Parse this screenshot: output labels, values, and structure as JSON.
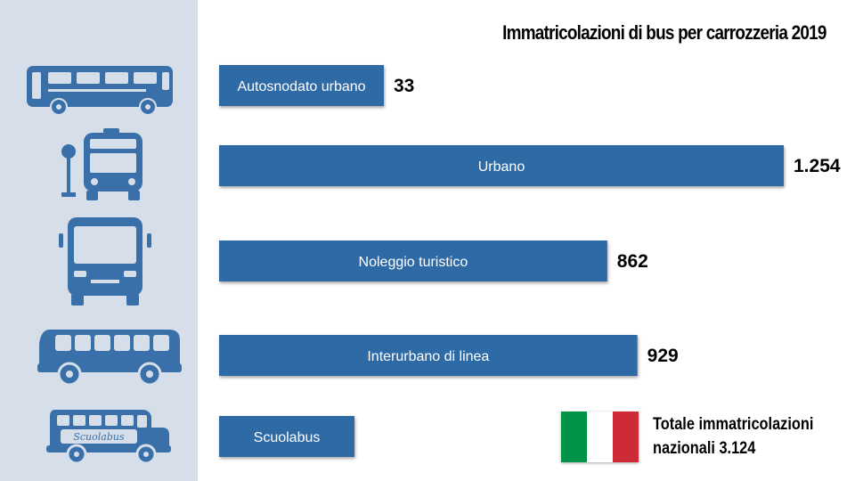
{
  "chart_data": {
    "type": "bar",
    "orientation": "horizontal",
    "title": "Immatricolazioni di bus per carrozzeria 2019",
    "categories": [
      "Autosnodato urbano",
      "Urbano",
      "Noleggio turistico",
      "Interurbano di linea",
      "Scuolabus"
    ],
    "values": [
      33,
      1254,
      862,
      929,
      null
    ],
    "value_labels": [
      "33",
      "1.254",
      "862",
      "929",
      ""
    ],
    "bar_color": "#2f6aa5",
    "xlim": [
      0,
      1254
    ],
    "grid": false,
    "legend": "none"
  },
  "icons": [
    "articulated-bus-icon",
    "urban-bus-icon",
    "coach-bus-icon",
    "intercity-bus-icon",
    "school-bus-icon"
  ],
  "school_bus_text": "Scuolabus",
  "total": {
    "line1": "Totale immatricolazioni",
    "line2": "nazionali 3.124"
  },
  "flag_colors": [
    "#009246",
    "#ffffff",
    "#ce2b37"
  ],
  "sidebar_color": "#d5dee9",
  "icon_color": "#3a70a9"
}
